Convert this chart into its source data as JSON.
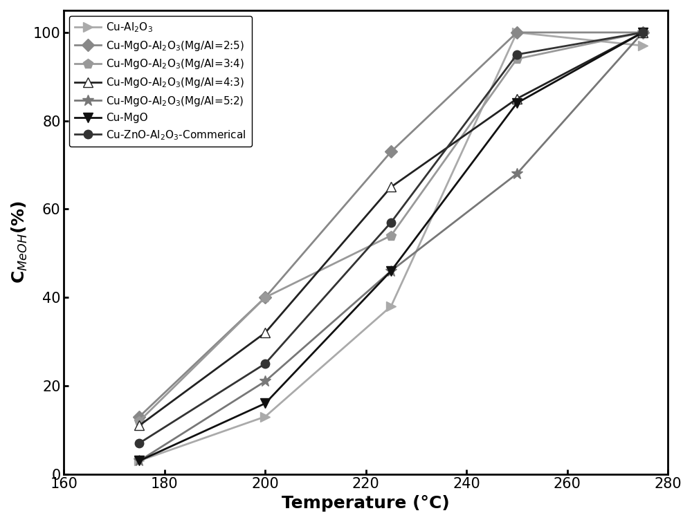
{
  "series": [
    {
      "label": "Cu-Al$_2$O$_3$",
      "x": [
        175,
        200,
        225,
        250,
        275
      ],
      "y": [
        3,
        13,
        38,
        100,
        97
      ],
      "color": "#aaaaaa",
      "marker": ">",
      "markersize": 10,
      "linewidth": 2.0,
      "zorder": 2,
      "markerfacecolor": "#aaaaaa"
    },
    {
      "label": "Cu-MgO-Al$_2$O$_3$(Mg/Al=2:5)",
      "x": [
        175,
        200,
        225,
        250,
        275
      ],
      "y": [
        13,
        40,
        73,
        100,
        100
      ],
      "color": "#888888",
      "marker": "D",
      "markersize": 9,
      "linewidth": 2.0,
      "zorder": 3,
      "markerfacecolor": "#888888"
    },
    {
      "label": "Cu-MgO-Al$_2$O$_3$(Mg/Al=3:4)",
      "x": [
        175,
        200,
        225,
        250,
        275
      ],
      "y": [
        12,
        40,
        54,
        94,
        100
      ],
      "color": "#999999",
      "marker": "p",
      "markersize": 10,
      "linewidth": 2.0,
      "zorder": 3,
      "markerfacecolor": "#999999"
    },
    {
      "label": "Cu-MgO-Al$_2$O$_3$(Mg/Al=4:3)",
      "x": [
        175,
        200,
        225,
        250,
        275
      ],
      "y": [
        11,
        32,
        65,
        85,
        100
      ],
      "color": "#222222",
      "marker": "^",
      "markersize": 10,
      "linewidth": 2.0,
      "zorder": 4,
      "markerfacecolor": "white"
    },
    {
      "label": "Cu-MgO-Al$_2$O$_3$(Mg/Al=5:2)",
      "x": [
        175,
        200,
        225,
        250,
        275
      ],
      "y": [
        3,
        21,
        46,
        68,
        100
      ],
      "color": "#777777",
      "marker": "*",
      "markersize": 12,
      "linewidth": 2.0,
      "zorder": 3,
      "markerfacecolor": "#777777"
    },
    {
      "label": "Cu-MgO",
      "x": [
        175,
        200,
        225,
        250,
        275
      ],
      "y": [
        3,
        16,
        46,
        84,
        100
      ],
      "color": "#111111",
      "marker": "v",
      "markersize": 10,
      "linewidth": 2.0,
      "zorder": 4,
      "markerfacecolor": "#111111"
    },
    {
      "label": "Cu-ZnO-Al$_2$O$_3$-Commerical",
      "x": [
        175,
        200,
        225,
        250,
        275
      ],
      "y": [
        7,
        25,
        57,
        95,
        100
      ],
      "color": "#333333",
      "marker": "o",
      "markersize": 9,
      "linewidth": 2.0,
      "zorder": 4,
      "markerfacecolor": "#333333"
    }
  ],
  "xlabel": "Temperature (°C)",
  "ylabel": "C$_{MeOH}$(%)",
  "xlim": [
    160,
    280
  ],
  "ylim": [
    0,
    105
  ],
  "xticks": [
    160,
    180,
    200,
    220,
    240,
    260,
    280
  ],
  "yticks": [
    0,
    20,
    40,
    60,
    80,
    100
  ],
  "figsize": [
    10.0,
    7.55
  ],
  "dpi": 100
}
